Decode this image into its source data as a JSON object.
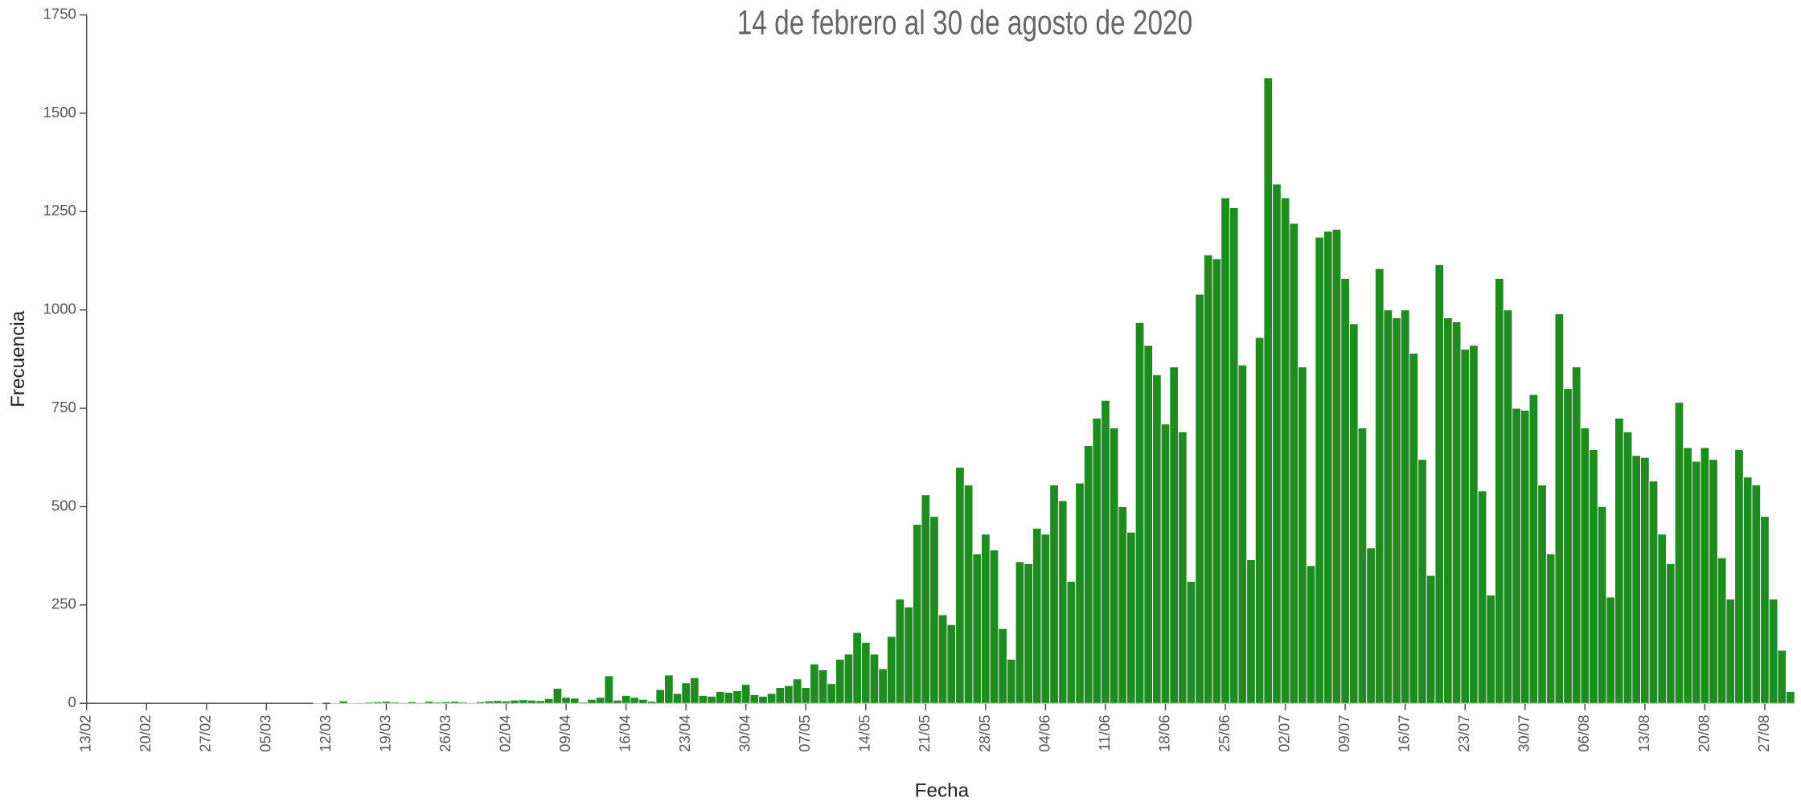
{
  "chart_data": {
    "type": "bar",
    "subtitle": "14 de febrero al 30 de agosto de 2020",
    "x_label": "Fecha",
    "y_label": "Frecuencia",
    "color": "#1f8c1f",
    "categories": [
      "14/02",
      "15/02",
      "16/02",
      "17/02",
      "18/02",
      "19/02",
      "20/02",
      "21/02",
      "22/02",
      "23/02",
      "24/02",
      "25/02",
      "26/02",
      "27/02",
      "28/02",
      "29/02",
      "01/03",
      "02/03",
      "03/03",
      "04/03",
      "05/03",
      "06/03",
      "07/03",
      "08/03",
      "09/03",
      "10/03",
      "11/03",
      "12/03",
      "13/03",
      "14/03",
      "15/03",
      "16/03",
      "17/03",
      "18/03",
      "19/03",
      "20/03",
      "21/03",
      "22/03",
      "23/03",
      "24/03",
      "25/03",
      "26/03",
      "27/03",
      "28/03",
      "29/03",
      "30/03",
      "31/03",
      "01/04",
      "02/04",
      "03/04",
      "04/04",
      "05/04",
      "06/04",
      "07/04",
      "08/04",
      "09/04",
      "10/04",
      "11/04",
      "12/04",
      "13/04",
      "14/04",
      "15/04",
      "16/04",
      "17/04",
      "18/04",
      "19/04",
      "20/04",
      "21/04",
      "22/04",
      "23/04",
      "24/04",
      "25/04",
      "26/04",
      "27/04",
      "28/04",
      "29/04",
      "30/04",
      "01/05",
      "02/05",
      "03/05",
      "04/05",
      "05/05",
      "06/05",
      "07/05",
      "08/05",
      "09/05",
      "10/05",
      "11/05",
      "12/05",
      "13/05",
      "14/05",
      "15/05",
      "16/05",
      "17/05",
      "18/05",
      "19/05",
      "20/05",
      "21/05",
      "22/05",
      "23/05",
      "24/05",
      "25/05",
      "26/05",
      "27/05",
      "28/05",
      "29/05",
      "30/05",
      "31/05",
      "01/06",
      "02/06",
      "03/06",
      "04/06",
      "05/06",
      "06/06",
      "07/06",
      "08/06",
      "09/06",
      "10/06",
      "11/06",
      "12/06",
      "13/06",
      "14/06",
      "15/06",
      "16/06",
      "17/06",
      "18/06",
      "19/06",
      "20/06",
      "21/06",
      "22/06",
      "23/06",
      "24/06",
      "25/06",
      "26/06",
      "27/06",
      "28/06",
      "29/06",
      "30/06",
      "01/07",
      "02/07",
      "03/07",
      "04/07",
      "05/07",
      "06/07",
      "07/07",
      "08/07",
      "09/07",
      "10/07",
      "11/07",
      "12/07",
      "13/07",
      "14/07",
      "15/07",
      "16/07",
      "17/07",
      "18/07",
      "19/07",
      "20/07",
      "21/07",
      "22/07",
      "23/07",
      "24/07",
      "25/07",
      "26/07",
      "27/07",
      "28/07",
      "29/07",
      "30/07",
      "31/07",
      "01/08",
      "02/08",
      "03/08",
      "04/08",
      "05/08",
      "06/08",
      "07/08",
      "08/08",
      "09/08",
      "10/08",
      "11/08",
      "12/08",
      "13/08",
      "14/08",
      "15/08",
      "16/08",
      "17/08",
      "18/08",
      "19/08",
      "20/08",
      "21/08",
      "22/08",
      "23/08",
      "24/08",
      "25/08",
      "26/08",
      "27/08",
      "28/08",
      "29/08",
      "30/08"
    ],
    "values": [
      0,
      0,
      0,
      0,
      0,
      0,
      0,
      0,
      0,
      0,
      0,
      0,
      0,
      0,
      0,
      0,
      0,
      0,
      0,
      0,
      0,
      0,
      0,
      0,
      0,
      0,
      1,
      0,
      2,
      6,
      1,
      2,
      3,
      4,
      5,
      3,
      2,
      4,
      2,
      5,
      3,
      4,
      5,
      3,
      2,
      4,
      6,
      7,
      6,
      8,
      9,
      8,
      7,
      12,
      38,
      15,
      13,
      3,
      10,
      15,
      70,
      8,
      20,
      15,
      10,
      5,
      35,
      72,
      25,
      52,
      65,
      20,
      18,
      30,
      28,
      32,
      48,
      22,
      18,
      25,
      40,
      45,
      62,
      40,
      100,
      85,
      50,
      112,
      125,
      180,
      155,
      125,
      88,
      170,
      265,
      245,
      455,
      530,
      475,
      225,
      200,
      600,
      555,
      380,
      430,
      390,
      190,
      112,
      360,
      355,
      445,
      430,
      555,
      515,
      310,
      560,
      655,
      725,
      770,
      700,
      500,
      435,
      968,
      910,
      835,
      710,
      855,
      690,
      310,
      1040,
      1140,
      1130,
      1285,
      1260,
      860,
      365,
      930,
      1590,
      1320,
      1285,
      1220,
      855,
      350,
      1185,
      1200,
      1205,
      1080,
      965,
      700,
      395,
      1105,
      1000,
      980,
      1000,
      890,
      620,
      325,
      1115,
      980,
      970,
      900,
      910,
      540,
      275,
      1080,
      1000,
      750,
      745,
      785,
      555,
      380,
      990,
      800,
      855,
      700,
      645,
      500,
      270,
      725,
      690,
      630,
      625,
      565,
      430,
      355,
      765,
      650,
      615,
      650,
      620,
      370,
      265,
      645,
      575,
      555,
      475,
      265,
      135,
      30
    ],
    "ylim": [
      0,
      1750
    ],
    "yticks": [
      0,
      250,
      500,
      750,
      1000,
      1250,
      1500,
      1750
    ],
    "xticks": [
      "13/02",
      "20/02",
      "27/02",
      "05/03",
      "12/03",
      "19/03",
      "26/03",
      "02/04",
      "09/04",
      "16/04",
      "23/04",
      "30/04",
      "07/05",
      "14/05",
      "21/05",
      "28/05",
      "04/06",
      "11/06",
      "18/06",
      "25/06",
      "02/07",
      "09/07",
      "16/07",
      "23/07",
      "30/07",
      "06/08",
      "13/08",
      "20/08",
      "27/08"
    ],
    "grid": false
  }
}
